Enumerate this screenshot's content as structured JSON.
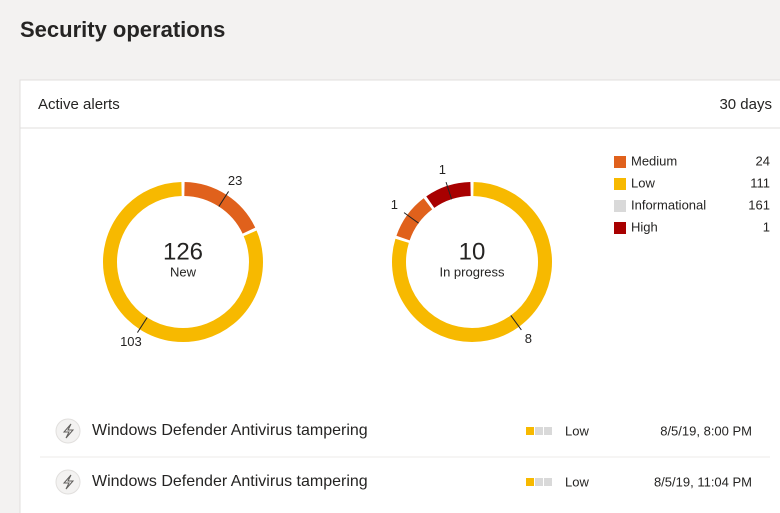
{
  "header": {
    "title": "Security operations"
  },
  "card": {
    "title": "Active alerts",
    "period": "30 days"
  },
  "chart_data": [
    {
      "type": "donut",
      "total": 126,
      "total_label": "New",
      "values": [
        23,
        103
      ],
      "colors": [
        "#e0611c",
        "#f7b900"
      ]
    },
    {
      "type": "donut",
      "total": 10,
      "total_label": "In progress",
      "values": [
        8,
        1,
        1
      ],
      "colors": [
        "#f7b900",
        "#e0611c",
        "#a80000"
      ]
    }
  ],
  "legend": [
    {
      "name": "Medium",
      "color": "#e0611c",
      "count": 24
    },
    {
      "name": "Low",
      "color": "#f7b900",
      "count": 111
    },
    {
      "name": "Informational",
      "color": "#d9d9d9",
      "count": 161
    },
    {
      "name": "High",
      "color": "#a80000",
      "count": 1
    }
  ],
  "alerts": [
    {
      "title": "Windows Defender Antivirus tampering",
      "severity": "Low",
      "time": "8/5/19, 8:00 PM"
    },
    {
      "title": "Windows Defender Antivirus tampering",
      "severity": "Low",
      "time": "8/5/19, 11:04 PM"
    }
  ]
}
